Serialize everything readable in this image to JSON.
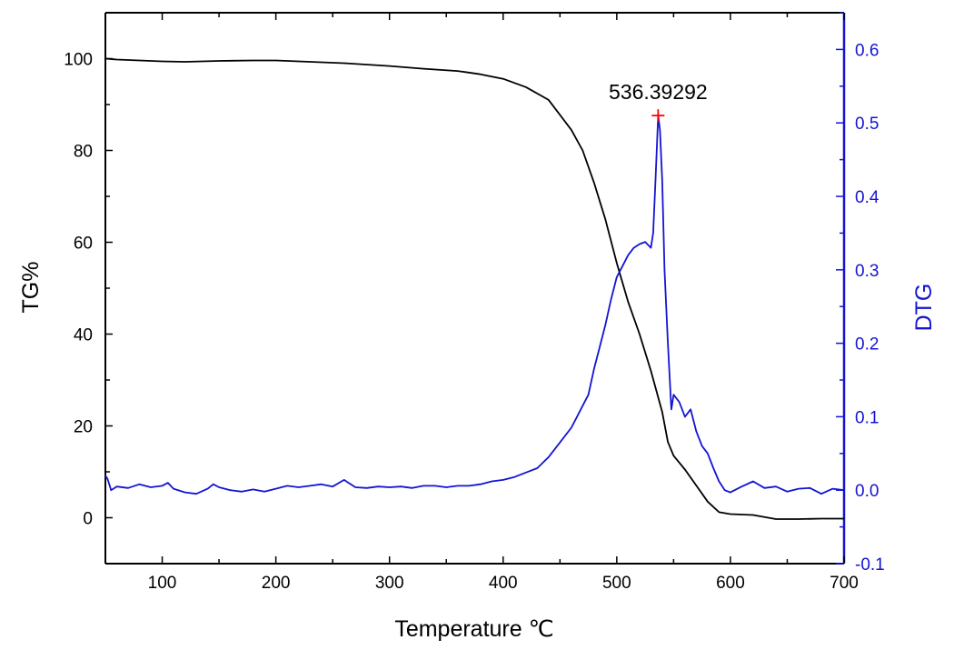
{
  "chart_data": {
    "type": "line",
    "xlabel": "Temperature ℃",
    "ylabel_left": "TG%",
    "ylabel_right": "DTG",
    "xlim": [
      50,
      700
    ],
    "ylim_left": [
      -10,
      110
    ],
    "ylim_right": [
      -0.1,
      0.65
    ],
    "x_ticks": [
      100,
      200,
      300,
      400,
      500,
      600,
      700
    ],
    "y_left_ticks": [
      0,
      20,
      40,
      60,
      80,
      100
    ],
    "y_right_ticks": [
      -0.1,
      0.0,
      0.1,
      0.2,
      0.3,
      0.4,
      0.5,
      0.6
    ],
    "grid": false,
    "colors": {
      "tg": "#000000",
      "dtg": "#1414d2",
      "peak_marker": "#ff0000",
      "axis_left": "#000000",
      "axis_right": "#1414d2"
    },
    "series": [
      {
        "axis": "left",
        "x": [
          50,
          60,
          80,
          100,
          120,
          150,
          180,
          200,
          230,
          260,
          300,
          330,
          360,
          380,
          400,
          420,
          440,
          460,
          470,
          480,
          490,
          500,
          510,
          520,
          530,
          540,
          545,
          550,
          560,
          570,
          580,
          590,
          600,
          620,
          640,
          660,
          680,
          700
        ],
        "values": [
          100,
          99.8,
          99.6,
          99.4,
          99.3,
          99.5,
          99.6,
          99.6,
          99.3,
          99.0,
          98.4,
          97.8,
          97.3,
          96.6,
          95.6,
          93.8,
          91.0,
          84.5,
          80.0,
          73.0,
          65.0,
          55.5,
          47.0,
          40.0,
          32.0,
          23.0,
          16.5,
          13.5,
          10.5,
          7.0,
          3.5,
          1.2,
          0.8,
          0.6,
          -0.3,
          -0.3,
          -0.2,
          -0.2
        ]
      },
      {
        "axis": "right",
        "x": [
          50,
          52,
          55,
          60,
          70,
          80,
          90,
          100,
          105,
          110,
          120,
          130,
          140,
          145,
          150,
          160,
          170,
          180,
          190,
          200,
          210,
          220,
          230,
          240,
          250,
          260,
          270,
          280,
          290,
          300,
          310,
          320,
          330,
          340,
          350,
          360,
          370,
          380,
          390,
          400,
          410,
          420,
          430,
          440,
          450,
          460,
          465,
          470,
          475,
          480,
          485,
          490,
          495,
          500,
          505,
          510,
          515,
          520,
          525,
          530,
          532,
          534,
          536.39,
          538,
          540,
          542,
          545,
          548,
          550,
          555,
          560,
          565,
          570,
          575,
          580,
          585,
          590,
          595,
          600,
          610,
          620,
          630,
          640,
          650,
          660,
          670,
          680,
          690,
          700
        ],
        "values": [
          0.02,
          0.015,
          0.0,
          0.005,
          0.003,
          0.008,
          0.004,
          0.006,
          0.01,
          0.002,
          -0.003,
          -0.005,
          0.002,
          0.008,
          0.004,
          0.0,
          -0.002,
          0.001,
          -0.002,
          0.002,
          0.006,
          0.004,
          0.006,
          0.008,
          0.005,
          0.014,
          0.004,
          0.003,
          0.005,
          0.004,
          0.005,
          0.003,
          0.006,
          0.006,
          0.004,
          0.006,
          0.006,
          0.008,
          0.012,
          0.014,
          0.018,
          0.024,
          0.03,
          0.045,
          0.065,
          0.085,
          0.1,
          0.115,
          0.13,
          0.165,
          0.195,
          0.225,
          0.26,
          0.29,
          0.305,
          0.32,
          0.33,
          0.335,
          0.338,
          0.33,
          0.35,
          0.42,
          0.51,
          0.49,
          0.42,
          0.3,
          0.2,
          0.11,
          0.13,
          0.12,
          0.1,
          0.11,
          0.08,
          0.06,
          0.05,
          0.03,
          0.012,
          0.0,
          -0.003,
          0.005,
          0.012,
          0.003,
          0.005,
          -0.002,
          0.002,
          0.003,
          -0.005,
          0.002,
          0.0
        ]
      }
    ],
    "annotations": [
      {
        "label": "536.39292",
        "x": 536.39,
        "y": 0.51,
        "axis": "right",
        "marker": "+"
      }
    ]
  }
}
